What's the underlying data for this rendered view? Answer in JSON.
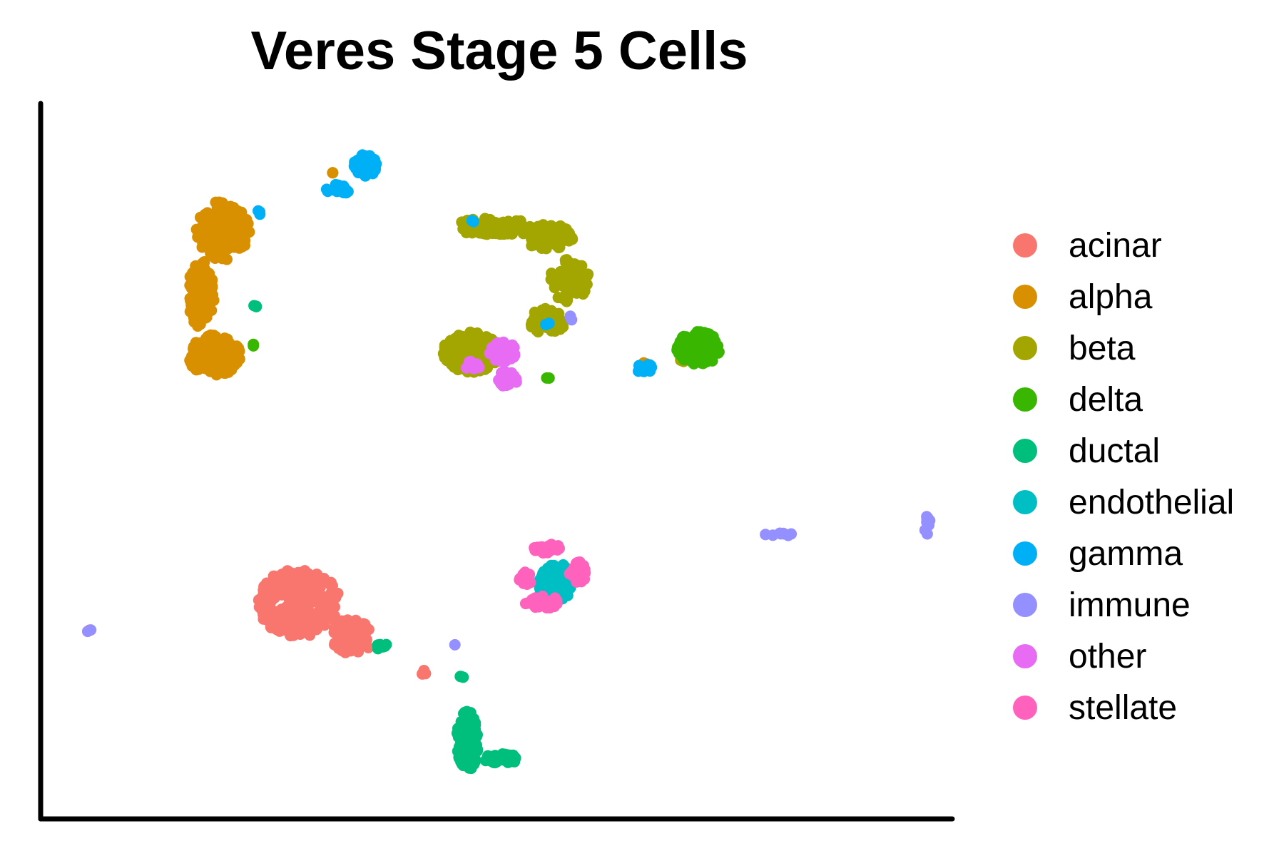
{
  "chart_data": {
    "type": "scatter",
    "title": "Veres Stage 5 Cells",
    "xlabel": "",
    "ylabel": "",
    "xlim": [
      0,
      100
    ],
    "ylim": [
      0,
      100
    ],
    "grid": false,
    "legend_position": "right",
    "series": [
      {
        "name": "acinar",
        "color": "#F8766D",
        "clusters": [
          {
            "cx": 28.0,
            "cy": 29.5,
            "rx": 4.6,
            "ry": 5.0,
            "n": 220
          },
          {
            "cx": 34.0,
            "cy": 24.5,
            "rx": 2.4,
            "ry": 2.6,
            "n": 60
          },
          {
            "cx": 42.0,
            "cy": 19.2,
            "rx": 0.6,
            "ry": 0.5,
            "n": 3
          },
          {
            "cx": 4.5,
            "cy": 25.2,
            "rx": 0.3,
            "ry": 0.3,
            "n": 1
          }
        ]
      },
      {
        "name": "alpha",
        "color": "#D89000",
        "clusters": [
          {
            "cx": 19.5,
            "cy": 84.5,
            "rx": 3.0,
            "ry": 4.5,
            "n": 140
          },
          {
            "cx": 17.0,
            "cy": 75.0,
            "rx": 1.5,
            "ry": 5.0,
            "n": 80
          },
          {
            "cx": 18.5,
            "cy": 66.0,
            "rx": 3.0,
            "ry": 3.0,
            "n": 150
          },
          {
            "cx": 31.5,
            "cy": 93.0,
            "rx": 0.4,
            "ry": 0.5,
            "n": 2
          },
          {
            "cx": 67.0,
            "cy": 64.5,
            "rx": 0.4,
            "ry": 0.4,
            "n": 3
          }
        ]
      },
      {
        "name": "beta",
        "color": "#A3A500",
        "clusters": [
          {
            "cx": 50.0,
            "cy": 85.0,
            "rx": 4.5,
            "ry": 1.3,
            "n": 90
          },
          {
            "cx": 56.0,
            "cy": 83.5,
            "rx": 3.0,
            "ry": 1.8,
            "n": 70
          },
          {
            "cx": 58.5,
            "cy": 77.0,
            "rx": 2.2,
            "ry": 3.2,
            "n": 70
          },
          {
            "cx": 56.0,
            "cy": 71.0,
            "rx": 2.0,
            "ry": 2.0,
            "n": 40
          },
          {
            "cx": 47.5,
            "cy": 66.5,
            "rx": 3.2,
            "ry": 3.0,
            "n": 170
          },
          {
            "cx": 71.0,
            "cy": 66.0,
            "rx": 1.2,
            "ry": 1.0,
            "n": 8
          }
        ]
      },
      {
        "name": "delta",
        "color": "#39B600",
        "clusters": [
          {
            "cx": 73.0,
            "cy": 67.0,
            "rx": 2.4,
            "ry": 2.5,
            "n": 140
          },
          {
            "cx": 23.0,
            "cy": 67.5,
            "rx": 0.3,
            "ry": 0.3,
            "n": 2
          },
          {
            "cx": 56.0,
            "cy": 62.5,
            "rx": 0.3,
            "ry": 0.3,
            "n": 2
          }
        ]
      },
      {
        "name": "ductal",
        "color": "#00BF7D",
        "clusters": [
          {
            "cx": 47.0,
            "cy": 9.0,
            "rx": 1.2,
            "ry": 4.5,
            "n": 130
          },
          {
            "cx": 51.0,
            "cy": 6.5,
            "rx": 2.2,
            "ry": 0.7,
            "n": 40
          },
          {
            "cx": 46.5,
            "cy": 18.5,
            "rx": 0.4,
            "ry": 0.4,
            "n": 3
          },
          {
            "cx": 37.5,
            "cy": 23.0,
            "rx": 1.0,
            "ry": 0.5,
            "n": 6
          },
          {
            "cx": 23.0,
            "cy": 73.0,
            "rx": 0.3,
            "ry": 0.5,
            "n": 3
          }
        ]
      },
      {
        "name": "endothelial",
        "color": "#00BFC4",
        "clusters": [
          {
            "cx": 57.0,
            "cy": 32.5,
            "rx": 2.0,
            "ry": 2.8,
            "n": 60
          }
        ]
      },
      {
        "name": "gamma",
        "color": "#00B0F6",
        "clusters": [
          {
            "cx": 35.5,
            "cy": 94.0,
            "rx": 1.3,
            "ry": 1.6,
            "n": 60
          },
          {
            "cx": 32.5,
            "cy": 90.5,
            "rx": 1.5,
            "ry": 0.7,
            "n": 15
          },
          {
            "cx": 67.0,
            "cy": 64.0,
            "rx": 1.0,
            "ry": 0.7,
            "n": 10
          },
          {
            "cx": 23.5,
            "cy": 87.0,
            "rx": 0.4,
            "ry": 0.4,
            "n": 3
          },
          {
            "cx": 47.5,
            "cy": 85.5,
            "rx": 0.4,
            "ry": 0.4,
            "n": 2
          },
          {
            "cx": 56.0,
            "cy": 70.5,
            "rx": 0.3,
            "ry": 0.3,
            "n": 2
          }
        ]
      },
      {
        "name": "immune",
        "color": "#9590FF",
        "clusters": [
          {
            "cx": 82.0,
            "cy": 39.5,
            "rx": 1.6,
            "ry": 0.4,
            "n": 8
          },
          {
            "cx": 99.0,
            "cy": 41.0,
            "rx": 0.6,
            "ry": 1.5,
            "n": 10
          },
          {
            "cx": 4.5,
            "cy": 25.3,
            "rx": 0.3,
            "ry": 0.3,
            "n": 2
          },
          {
            "cx": 45.5,
            "cy": 23.0,
            "rx": 0.3,
            "ry": 0.3,
            "n": 1
          },
          {
            "cx": 59.0,
            "cy": 71.5,
            "rx": 0.6,
            "ry": 0.4,
            "n": 3
          }
        ]
      },
      {
        "name": "other",
        "color": "#E76BF3",
        "clusters": [
          {
            "cx": 51.0,
            "cy": 66.5,
            "rx": 1.5,
            "ry": 1.5,
            "n": 40
          },
          {
            "cx": 51.5,
            "cy": 62.5,
            "rx": 1.2,
            "ry": 1.2,
            "n": 25
          },
          {
            "cx": 47.5,
            "cy": 64.5,
            "rx": 1.0,
            "ry": 0.6,
            "n": 8
          }
        ]
      },
      {
        "name": "stellate",
        "color": "#FF62BC",
        "clusters": [
          {
            "cx": 56.0,
            "cy": 37.5,
            "rx": 1.5,
            "ry": 0.7,
            "n": 30
          },
          {
            "cx": 59.5,
            "cy": 34.0,
            "rx": 1.0,
            "ry": 1.5,
            "n": 35
          },
          {
            "cx": 55.5,
            "cy": 29.5,
            "rx": 2.0,
            "ry": 1.0,
            "n": 30
          },
          {
            "cx": 53.5,
            "cy": 33.0,
            "rx": 0.7,
            "ry": 1.0,
            "n": 15
          }
        ]
      }
    ]
  }
}
